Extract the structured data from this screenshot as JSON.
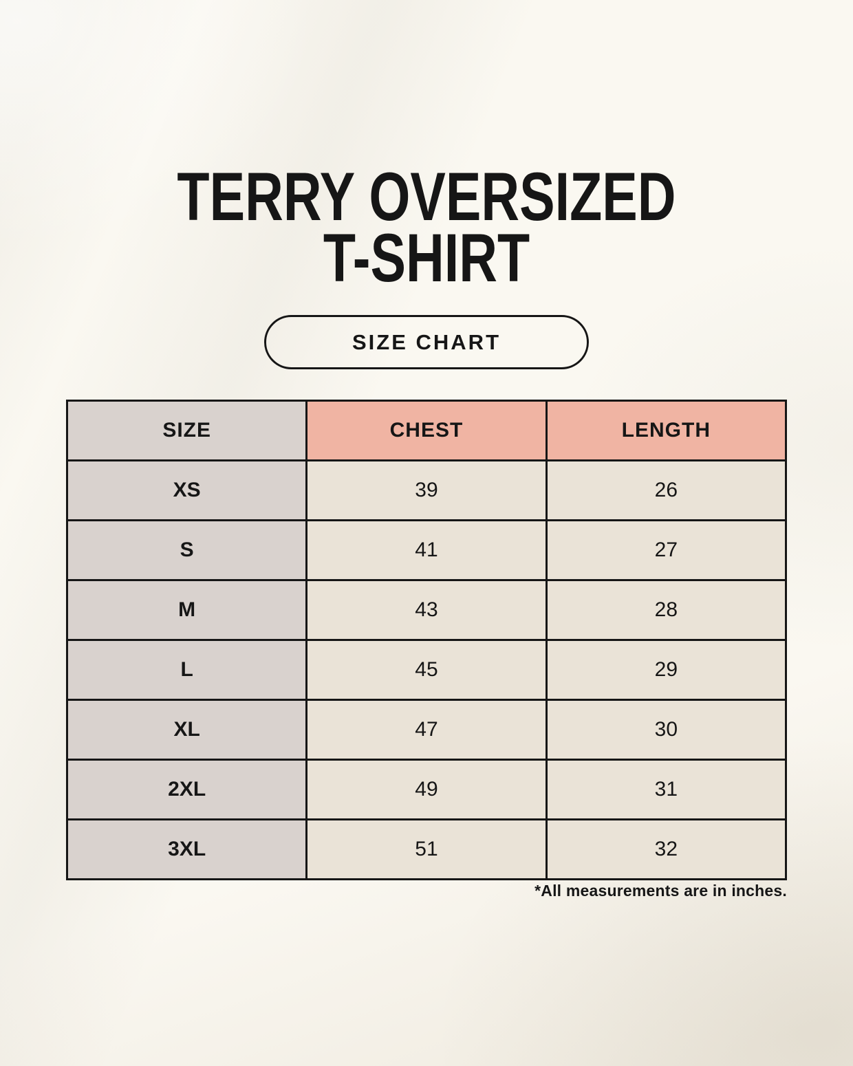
{
  "page": {
    "title": {
      "line1": "TERRY OVERSIZED",
      "line2": "T-SHIRT"
    },
    "size_chart_button": "SIZE CHART",
    "footnote": "*All measurements are in inches."
  },
  "chart_data": {
    "type": "table",
    "title": "TERRY OVERSIZED T-SHIRT",
    "columns": [
      "SIZE",
      "CHEST",
      "LENGTH"
    ],
    "rows": [
      [
        "XS",
        "39",
        "26"
      ],
      [
        "S",
        "41",
        "27"
      ],
      [
        "M",
        "43",
        "28"
      ],
      [
        "L",
        "45",
        "29"
      ],
      [
        "XL",
        "47",
        "30"
      ],
      [
        "2XL",
        "49",
        "31"
      ],
      [
        "3XL",
        "51",
        "32"
      ]
    ],
    "units_note": "*All measurements are in inches."
  },
  "colors": {
    "background": "#f8f4ea",
    "header_accent": "#f0b4a3",
    "size_column": "#d9d2ce",
    "value_cell": "#eae3d7",
    "border": "#161616",
    "text": "#161616"
  }
}
